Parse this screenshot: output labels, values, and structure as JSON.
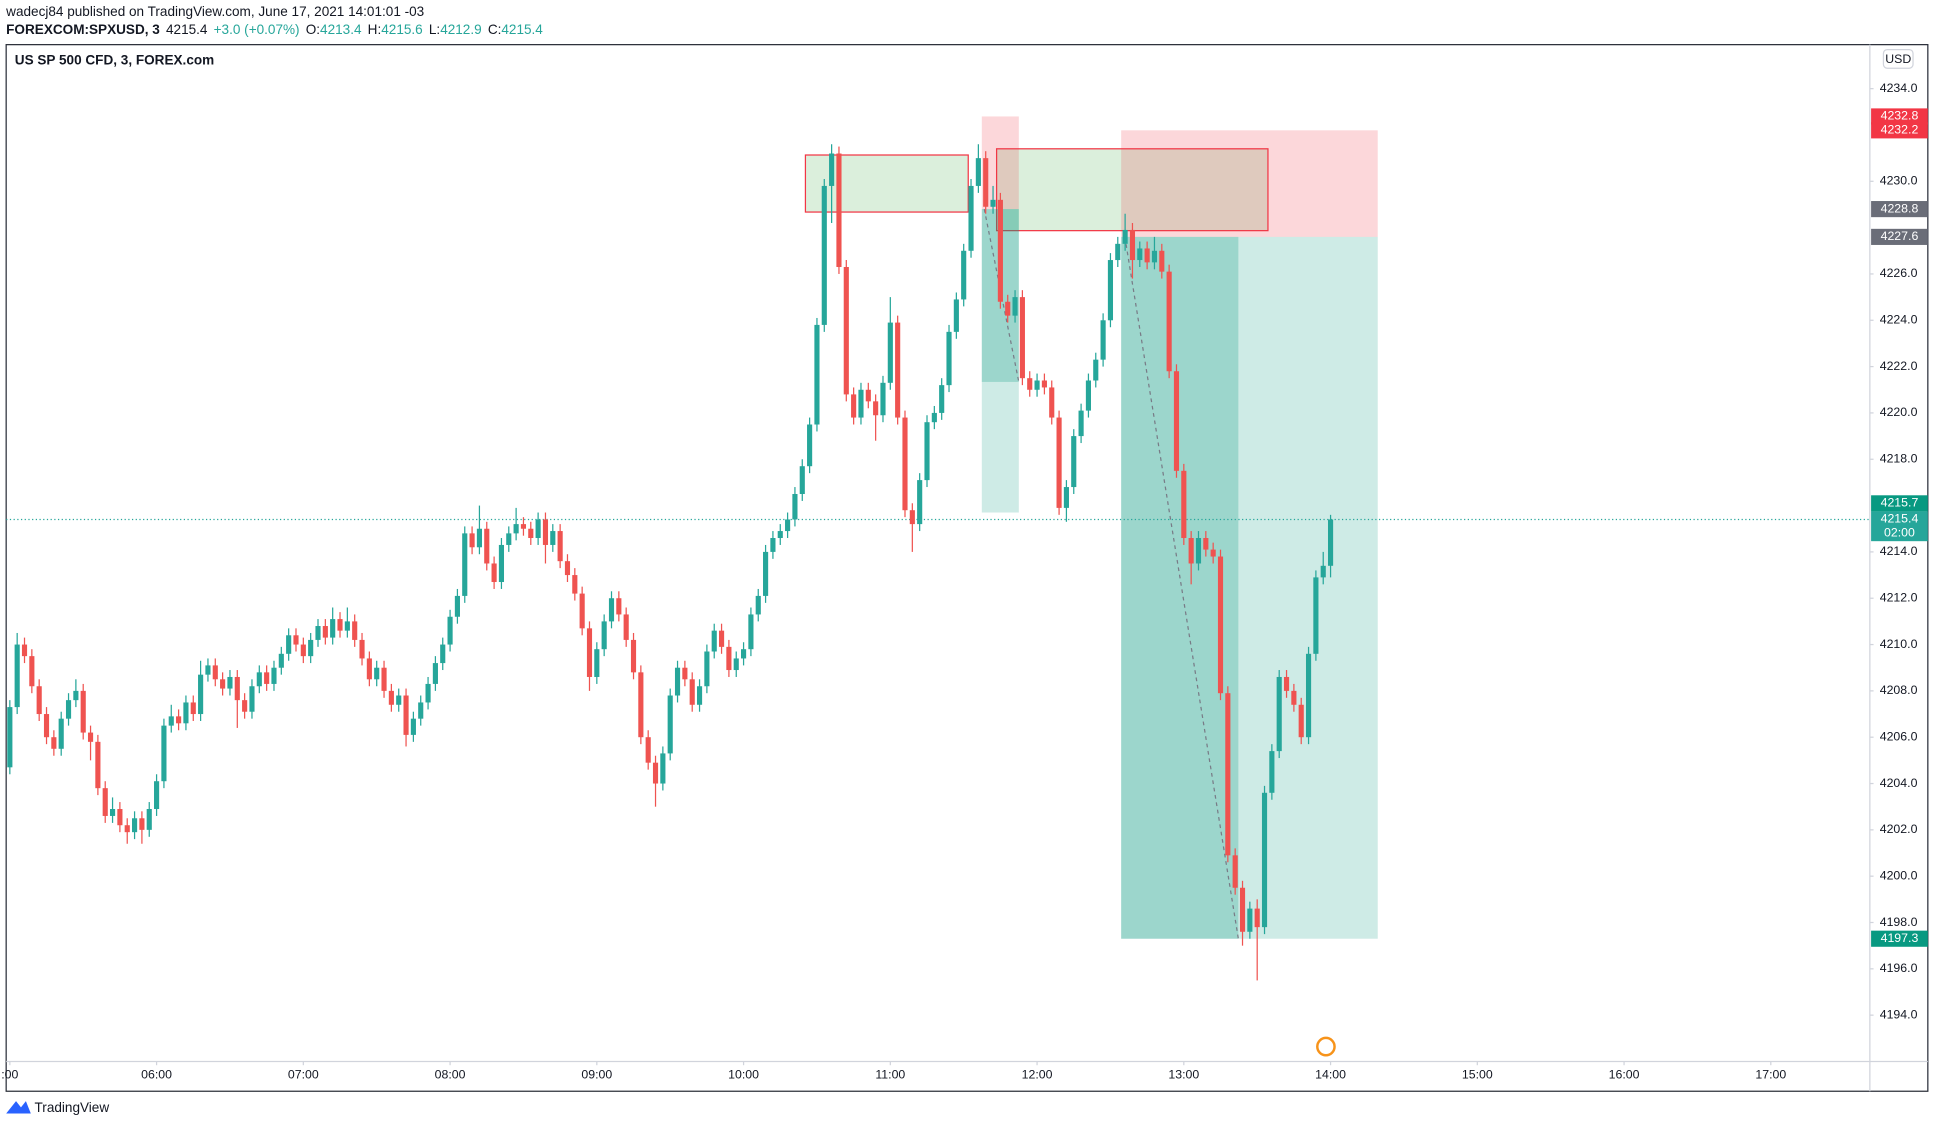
{
  "header": {
    "publisher": "wadecj84 published on TradingView.com, June 17, 2021 14:01:01 -03",
    "symbol": "FOREXCOM:SPXUSD, 3",
    "change": "+3.0 (+0.07%)",
    "ohlc_labels": [
      "O:",
      "H:",
      "L:",
      "C:"
    ]
  },
  "chart_data": {
    "type": "candlestick",
    "title": "US SP 500 CFD, 3, FOREX.com",
    "currency": "USD",
    "up_color": "#26a69a",
    "down_color": "#ef5350",
    "open": [
      4204.7,
      4207.3,
      4210.0,
      4209.5,
      4208.2,
      4207.0,
      4206.0,
      4205.5,
      4206.8,
      4207.6,
      4208.0,
      4206.2,
      4205.8,
      4203.8,
      4202.6,
      4202.9,
      4202.2,
      4201.9,
      4202.5,
      4202.0,
      4202.9,
      4204.1,
      4206.5,
      4206.9,
      4206.6,
      4207.5,
      4207.0,
      4208.7,
      4209.1,
      4208.5,
      4208.1,
      4208.6,
      4207.6,
      4207.1,
      4208.2,
      4208.8,
      4208.3,
      4209.0,
      4209.6,
      4210.4,
      4210.0,
      4209.5,
      4210.2,
      4210.8,
      4210.3,
      4211.1,
      4210.6,
      4211.0,
      4210.2,
      4209.4,
      4208.5,
      4209.0,
      4208.0,
      4207.4,
      4207.8,
      4206.1,
      4206.8,
      4207.5,
      4208.3,
      4209.2,
      4210.0,
      4211.2,
      4212.1,
      4214.8,
      4214.2,
      4215.0,
      4213.5,
      4212.7,
      4214.3,
      4214.8,
      4215.2,
      4215.0,
      4214.6,
      4215.4,
      4214.3,
      4214.9,
      4213.6,
      4213.0,
      4212.2,
      4210.7,
      4208.6,
      4209.8,
      4211.0,
      4212.0,
      4211.3,
      4210.2,
      4208.8,
      4206.0,
      4204.9,
      4204.0,
      4205.3,
      4207.8,
      4209.0,
      4208.5,
      4207.4,
      4208.2,
      4209.7,
      4210.6,
      4209.9,
      4208.9,
      4209.4,
      4209.8,
      4211.3,
      4212.1,
      4214.0,
      4214.6,
      4214.9,
      4215.4,
      4216.5,
      4217.7,
      4219.5,
      4223.8,
      4229.8,
      4231.2,
      4226.3,
      4220.8,
      4219.8,
      4221.0,
      4220.5,
      4219.9,
      4221.3,
      4223.9,
      4219.8,
      4215.8,
      4215.2,
      4217.1,
      4219.6,
      4220.0,
      4221.2,
      4223.5,
      4224.9,
      4227.0,
      4229.8,
      4231.0,
      4228.9,
      4229.2,
      4224.8,
      4224.2,
      4225.0,
      4221.5,
      4221.0,
      4221.4,
      4221.1,
      4219.8,
      4215.9,
      4216.8,
      4219.0,
      4220.1,
      4221.4,
      4222.3,
      4224.0,
      4226.6,
      4227.3,
      4227.9,
      4226.6,
      4227.1,
      4226.5,
      4227.0,
      4226.1,
      4221.8,
      4217.5,
      4214.6,
      4213.5,
      4214.6,
      4214.1,
      4213.8,
      4207.9,
      4200.9,
      4199.5,
      4197.6,
      4198.6,
      4197.8,
      4203.6,
      4205.4,
      4208.6,
      4208.0,
      4207.4,
      4206.0,
      4209.6,
      4212.9,
      4213.4
    ],
    "high": [
      4207.6,
      4210.5,
      4210.3,
      4209.8,
      4208.5,
      4207.3,
      4206.3,
      4207.1,
      4207.9,
      4208.5,
      4208.3,
      4206.5,
      4206.1,
      4204.1,
      4203.4,
      4203.2,
      4202.5,
      4202.8,
      4202.8,
      4203.2,
      4204.4,
      4206.8,
      4207.4,
      4207.2,
      4207.8,
      4207.8,
      4209.3,
      4209.4,
      4209.4,
      4208.8,
      4208.9,
      4208.9,
      4207.9,
      4208.5,
      4209.1,
      4209.1,
      4209.3,
      4209.9,
      4210.7,
      4210.7,
      4210.3,
      4210.5,
      4211.1,
      4211.1,
      4211.6,
      4211.4,
      4211.6,
      4211.3,
      4210.5,
      4209.7,
      4209.3,
      4209.3,
      4208.3,
      4208.1,
      4208.1,
      4207.1,
      4207.8,
      4208.6,
      4209.5,
      4210.3,
      4211.5,
      4212.4,
      4215.1,
      4215.1,
      4216.0,
      4215.3,
      4213.8,
      4214.6,
      4215.1,
      4215.9,
      4215.5,
      4215.3,
      4215.7,
      4215.7,
      4215.2,
      4215.2,
      4213.9,
      4213.3,
      4212.5,
      4211.0,
      4210.1,
      4211.3,
      4212.3,
      4212.3,
      4211.6,
      4210.5,
      4209.1,
      4206.3,
      4205.2,
      4205.6,
      4208.1,
      4209.3,
      4209.3,
      4208.8,
      4208.5,
      4210.0,
      4210.9,
      4210.9,
      4210.2,
      4209.7,
      4210.1,
      4211.6,
      4212.4,
      4214.3,
      4214.9,
      4215.2,
      4215.7,
      4216.8,
      4218.0,
      4219.8,
      4224.1,
      4230.1,
      4231.6,
      4231.5,
      4226.6,
      4221.1,
      4221.3,
      4221.3,
      4220.8,
      4221.6,
      4225.0,
      4224.2,
      4220.1,
      4216.1,
      4217.4,
      4219.9,
      4220.3,
      4221.5,
      4223.8,
      4225.2,
      4227.3,
      4230.1,
      4231.6,
      4231.3,
      4229.8,
      4229.5,
      4225.1,
      4225.3,
      4225.3,
      4221.8,
      4221.7,
      4221.7,
      4221.4,
      4220.1,
      4217.1,
      4219.3,
      4220.4,
      4221.7,
      4222.6,
      4224.3,
      4226.9,
      4227.6,
      4228.6,
      4228.2,
      4227.4,
      4227.4,
      4227.6,
      4227.3,
      4226.4,
      4222.1,
      4217.8,
      4214.9,
      4214.9,
      4214.9,
      4214.4,
      4214.1,
      4208.2,
      4201.2,
      4199.8,
      4198.9,
      4199.0,
      4203.9,
      4205.7,
      4208.9,
      4208.9,
      4208.3,
      4207.7,
      4209.9,
      4213.2,
      4214.0,
      4215.6
    ],
    "low": [
      4204.4,
      4207.0,
      4209.2,
      4207.9,
      4206.7,
      4205.7,
      4205.2,
      4205.2,
      4206.5,
      4207.3,
      4205.9,
      4205.0,
      4203.5,
      4202.3,
      4202.3,
      4201.9,
      4201.4,
      4201.6,
      4201.4,
      4201.7,
      4202.6,
      4203.8,
      4206.2,
      4206.3,
      4206.3,
      4206.7,
      4206.7,
      4208.4,
      4208.2,
      4207.8,
      4207.8,
      4206.4,
      4206.8,
      4206.8,
      4207.9,
      4208.0,
      4208.0,
      4208.7,
      4209.3,
      4209.7,
      4209.2,
      4209.2,
      4209.9,
      4210.0,
      4210.0,
      4210.3,
      4210.3,
      4209.9,
      4209.1,
      4208.2,
      4208.2,
      4207.7,
      4207.1,
      4207.1,
      4205.6,
      4205.8,
      4206.5,
      4207.2,
      4208.0,
      4208.9,
      4209.7,
      4210.9,
      4211.8,
      4213.9,
      4213.9,
      4213.2,
      4212.4,
      4212.4,
      4214.0,
      4214.5,
      4214.7,
      4214.3,
      4214.3,
      4213.5,
      4214.0,
      4213.3,
      4212.7,
      4211.9,
      4210.4,
      4208.0,
      4208.3,
      4209.5,
      4210.7,
      4211.0,
      4209.9,
      4208.5,
      4205.7,
      4204.6,
      4203.0,
      4203.7,
      4205.0,
      4207.5,
      4208.2,
      4207.1,
      4207.1,
      4207.9,
      4209.4,
      4209.6,
      4208.6,
      4208.6,
      4209.1,
      4209.5,
      4211.0,
      4211.8,
      4213.7,
      4214.3,
      4214.6,
      4215.1,
      4216.2,
      4217.4,
      4219.2,
      4223.5,
      4228.2,
      4226.0,
      4220.5,
      4219.5,
      4219.5,
      4220.2,
      4218.8,
      4219.6,
      4221.0,
      4219.5,
      4215.5,
      4214.0,
      4214.9,
      4216.8,
      4219.3,
      4219.7,
      4220.9,
      4223.2,
      4224.6,
      4226.7,
      4229.5,
      4228.6,
      4228.6,
      4224.5,
      4223.9,
      4223.9,
      4221.2,
      4220.7,
      4220.7,
      4220.8,
      4219.5,
      4215.6,
      4215.3,
      4216.5,
      4218.7,
      4219.8,
      4221.1,
      4222.0,
      4223.7,
      4226.3,
      4227.0,
      4225.8,
      4226.3,
      4226.2,
      4226.2,
      4225.8,
      4221.5,
      4217.2,
      4214.3,
      4212.6,
      4213.2,
      4213.8,
      4213.5,
      4207.6,
      4200.6,
      4199.2,
      4197.0,
      4197.3,
      4195.5,
      4197.5,
      4203.3,
      4205.1,
      4207.7,
      4207.1,
      4205.7,
      4205.7,
      4209.3,
      4212.6,
      4212.9
    ],
    "close": [
      4207.3,
      4210.0,
      4209.5,
      4208.2,
      4207.0,
      4206.0,
      4205.5,
      4206.8,
      4207.6,
      4208.0,
      4206.2,
      4205.8,
      4203.8,
      4202.6,
      4202.9,
      4202.2,
      4201.9,
      4202.5,
      4202.0,
      4202.9,
      4204.1,
      4206.5,
      4206.9,
      4206.6,
      4207.5,
      4207.0,
      4208.7,
      4209.1,
      4208.5,
      4208.1,
      4208.6,
      4207.6,
      4207.1,
      4208.2,
      4208.8,
      4208.3,
      4209.0,
      4209.6,
      4210.4,
      4210.0,
      4209.5,
      4210.2,
      4210.8,
      4210.3,
      4211.1,
      4210.6,
      4211.0,
      4210.2,
      4209.4,
      4208.5,
      4209.0,
      4208.0,
      4207.4,
      4207.8,
      4206.1,
      4206.8,
      4207.5,
      4208.3,
      4209.2,
      4210.0,
      4211.2,
      4212.1,
      4214.8,
      4214.2,
      4215.0,
      4213.5,
      4212.7,
      4214.3,
      4214.8,
      4215.2,
      4215.0,
      4214.6,
      4215.4,
      4214.3,
      4214.9,
      4213.6,
      4213.0,
      4212.2,
      4210.7,
      4208.6,
      4209.8,
      4211.0,
      4212.0,
      4211.3,
      4210.2,
      4208.8,
      4206.0,
      4204.9,
      4204.0,
      4205.3,
      4207.8,
      4209.0,
      4208.5,
      4207.4,
      4208.2,
      4209.7,
      4210.6,
      4209.9,
      4208.9,
      4209.4,
      4209.8,
      4211.3,
      4212.1,
      4214.0,
      4214.6,
      4214.9,
      4215.4,
      4216.5,
      4217.7,
      4219.5,
      4223.8,
      4229.8,
      4231.2,
      4226.3,
      4220.8,
      4219.8,
      4221.0,
      4220.5,
      4219.9,
      4221.3,
      4223.9,
      4219.8,
      4215.8,
      4215.2,
      4217.1,
      4219.6,
      4220.0,
      4221.2,
      4223.5,
      4224.9,
      4227.0,
      4229.8,
      4231.0,
      4228.9,
      4229.2,
      4224.8,
      4224.2,
      4225.0,
      4221.5,
      4221.0,
      4221.4,
      4221.1,
      4219.8,
      4215.9,
      4216.8,
      4219.0,
      4220.1,
      4221.4,
      4222.3,
      4224.0,
      4226.6,
      4227.3,
      4227.9,
      4226.6,
      4227.1,
      4226.5,
      4227.0,
      4226.1,
      4221.8,
      4217.5,
      4214.6,
      4213.5,
      4214.6,
      4214.1,
      4213.8,
      4207.9,
      4200.9,
      4199.5,
      4197.6,
      4198.6,
      4197.8,
      4203.6,
      4205.4,
      4208.6,
      4208.0,
      4207.4,
      4206.0,
      4209.6,
      4212.9,
      4213.4,
      4215.4
    ],
    "xlim": [
      -0.5,
      253.5
    ],
    "xticks": [
      {
        "value": 0,
        "label": ":00"
      },
      {
        "value": 20,
        "label": "06:00"
      },
      {
        "value": 40,
        "label": "07:00"
      },
      {
        "value": 60,
        "label": "08:00"
      },
      {
        "value": 80,
        "label": "09:00"
      },
      {
        "value": 100,
        "label": "10:00"
      },
      {
        "value": 120,
        "label": "11:00"
      },
      {
        "value": 140,
        "label": "12:00"
      },
      {
        "value": 160,
        "label": "13:00"
      },
      {
        "value": 180,
        "label": "14:00"
      },
      {
        "value": 200,
        "label": "15:00"
      },
      {
        "value": 220,
        "label": "16:00"
      },
      {
        "value": 240,
        "label": "17:00"
      }
    ],
    "ylim": [
      4192.0,
      4235.9
    ],
    "yticks": [
      {
        "value": 4194,
        "label": "4194.0"
      },
      {
        "value": 4196,
        "label": "4196.0"
      },
      {
        "value": 4198,
        "label": "4198.0"
      },
      {
        "value": 4200,
        "label": "4200.0"
      },
      {
        "value": 4202,
        "label": "4202.0"
      },
      {
        "value": 4204,
        "label": "4204.0"
      },
      {
        "value": 4206,
        "label": "4206.0"
      },
      {
        "value": 4208,
        "label": "4208.0"
      },
      {
        "value": 4210,
        "label": "4210.0"
      },
      {
        "value": 4212,
        "label": "4212.0"
      },
      {
        "value": 4214,
        "label": "4214.0"
      },
      {
        "value": 4218,
        "label": "4218.0"
      },
      {
        "value": 4220,
        "label": "4220.0"
      },
      {
        "value": 4222,
        "label": "4222.0"
      },
      {
        "value": 4224,
        "label": "4224.0"
      },
      {
        "value": 4226,
        "label": "4226.0"
      },
      {
        "value": 4230,
        "label": "4230.0"
      },
      {
        "value": 4234,
        "label": "4234.0"
      }
    ],
    "countdown": "02:00",
    "positions": [
      {
        "stop": 4232.8,
        "entry": 4228.8,
        "target": 4215.7
      },
      {
        "stop": 4232.2,
        "entry": 4227.6,
        "target": 4197.3
      }
    ]
  },
  "footer": {
    "brand": "TradingView"
  }
}
